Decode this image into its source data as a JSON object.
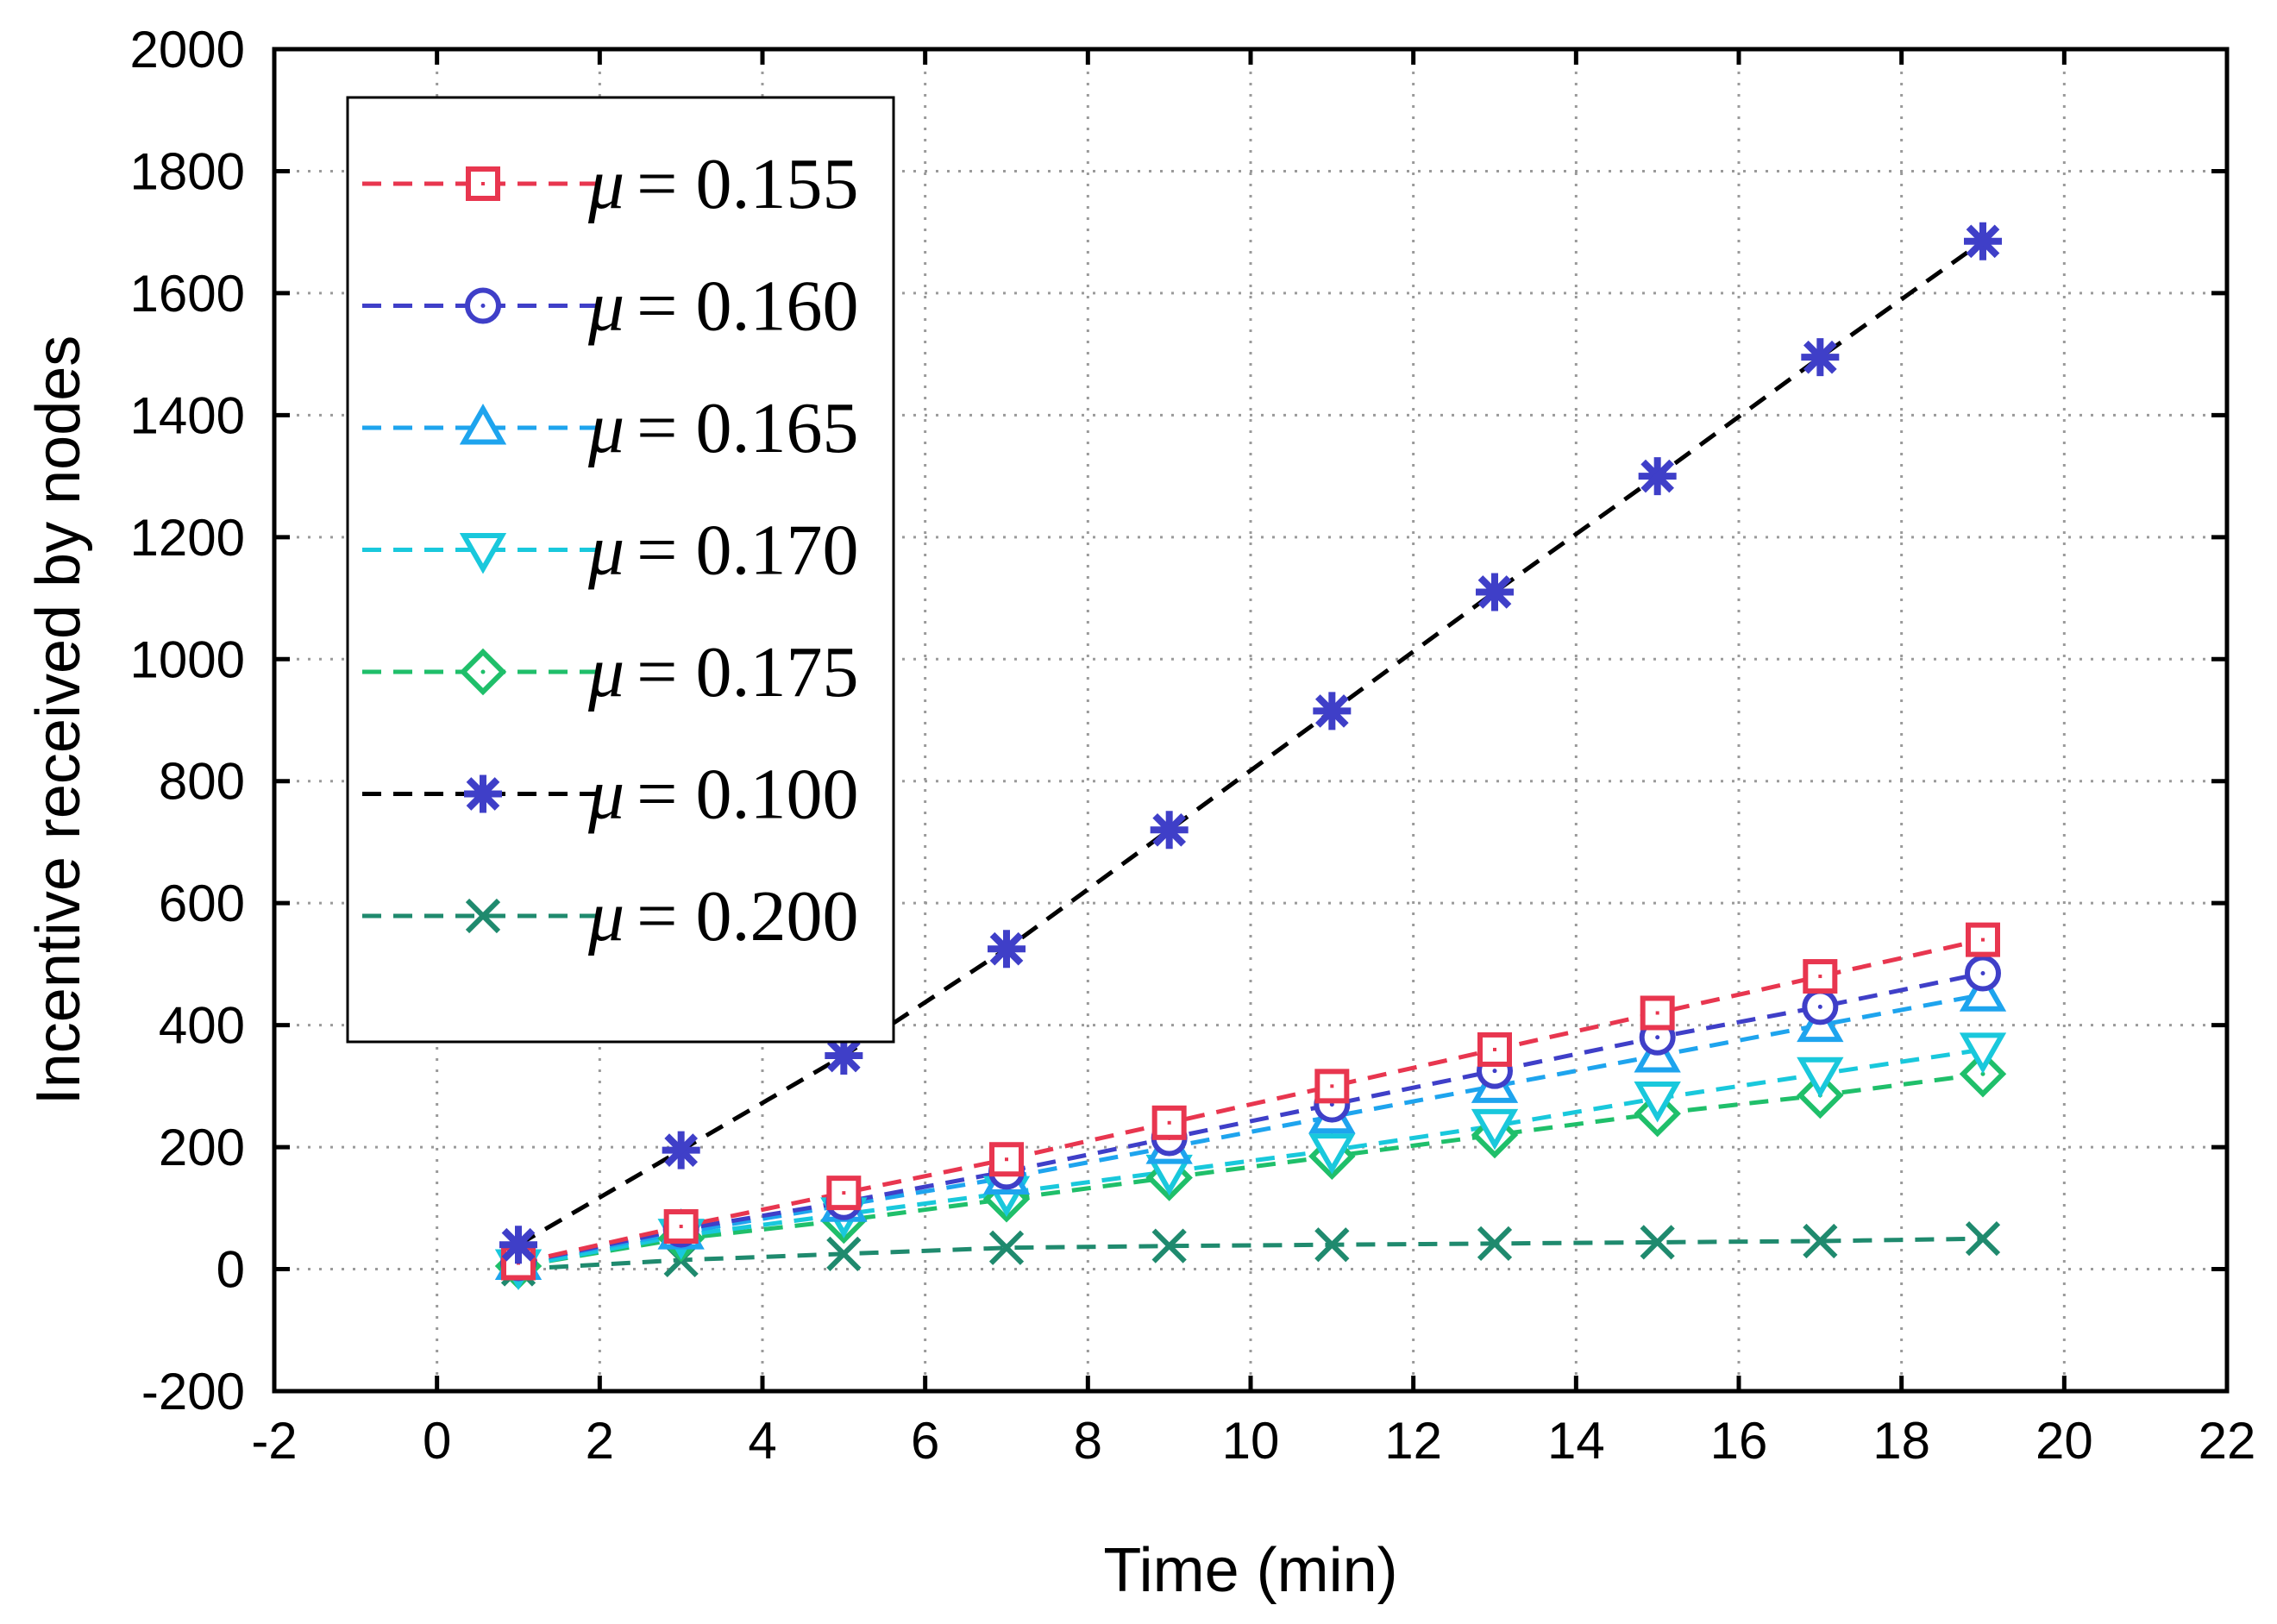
{
  "chart_data": {
    "type": "line",
    "title": "",
    "xlabel": "Time (min)",
    "ylabel": "Incentive received by nodes",
    "xlim": [
      -2,
      22
    ],
    "ylim": [
      -200,
      2000
    ],
    "xticks": [
      -2,
      0,
      2,
      4,
      6,
      8,
      10,
      12,
      14,
      16,
      18,
      20,
      22
    ],
    "yticks": [
      -200,
      0,
      200,
      400,
      600,
      800,
      1000,
      1200,
      1400,
      1600,
      1800,
      2000
    ],
    "xtick_labels": [
      "-2",
      "0",
      "2",
      "4",
      "6",
      "8",
      "10",
      "12",
      "14",
      "16",
      "18",
      "20",
      "22"
    ],
    "ytick_labels": [
      "-200",
      "0",
      "200",
      "400",
      "600",
      "800",
      "1000",
      "1200",
      "1400",
      "1600",
      "1800",
      "2000"
    ],
    "grid": true,
    "legend_position": "top-left",
    "x": [
      1,
      3,
      5,
      7,
      9,
      11,
      13,
      15,
      17,
      19
    ],
    "series": [
      {
        "name": "μ = 0.155",
        "mu_symbol": "μ",
        "mu_value": "= 0.155",
        "line_color": "#e8364f",
        "marker_color": "#e8364f",
        "marker": "square",
        "values": [
          10,
          70,
          125,
          180,
          240,
          300,
          360,
          420,
          480,
          540
        ]
      },
      {
        "name": "μ = 0.160",
        "mu_symbol": "μ",
        "mu_value": "= 0.160",
        "line_color": "#3f3fc8",
        "marker_color": "#3f3fc8",
        "marker": "circle",
        "values": [
          10,
          65,
          110,
          160,
          215,
          270,
          325,
          380,
          430,
          485
        ]
      },
      {
        "name": "μ = 0.165",
        "mu_symbol": "μ",
        "mu_value": "= 0.165",
        "line_color": "#1ea4ee",
        "marker_color": "#1ea4ee",
        "marker": "triangle-up",
        "values": [
          10,
          60,
          105,
          150,
          200,
          250,
          300,
          350,
          400,
          450
        ]
      },
      {
        "name": "μ = 0.170",
        "mu_symbol": "μ",
        "mu_value": "= 0.170",
        "line_color": "#19c8dc",
        "marker_color": "#19c8dc",
        "marker": "triangle-down",
        "values": [
          5,
          55,
          90,
          125,
          160,
          195,
          235,
          280,
          320,
          360
        ]
      },
      {
        "name": "μ = 0.175",
        "mu_symbol": "μ",
        "mu_value": "= 0.175",
        "line_color": "#1fbf6a",
        "marker_color": "#1fbf6a",
        "marker": "diamond",
        "values": [
          5,
          50,
          80,
          115,
          150,
          185,
          220,
          255,
          285,
          320
        ]
      },
      {
        "name": "μ = 0.100",
        "mu_symbol": "μ",
        "mu_value": "= 0.100",
        "line_color": "#000000",
        "marker_color": "#3f3fc8",
        "marker": "asterisk",
        "values": [
          40,
          195,
          350,
          525,
          720,
          915,
          1110,
          1300,
          1495,
          1685
        ]
      },
      {
        "name": "μ = 0.200",
        "mu_symbol": "μ",
        "mu_value": "= 0.200",
        "line_color": "#1f8a6e",
        "marker_color": "#1f8a6e",
        "marker": "x",
        "values": [
          0,
          15,
          25,
          35,
          38,
          40,
          42,
          44,
          46,
          50
        ]
      }
    ]
  }
}
